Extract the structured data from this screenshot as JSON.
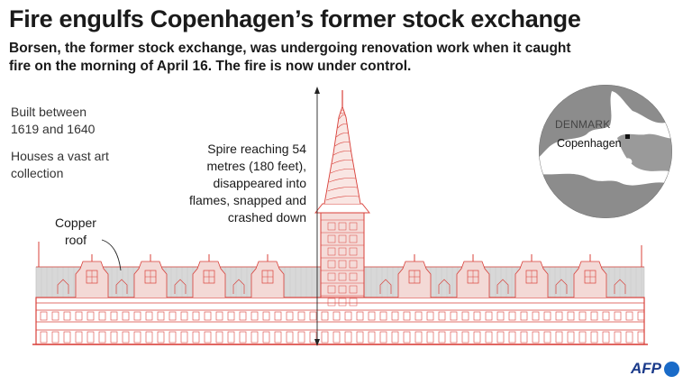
{
  "title": "Fire engulfs Copenhagen’s former stock exchange",
  "subtitle": "Borsen, the former stock exchange, was undergoing renovation work when it caught fire on the morning of April 16. The fire is now under control.",
  "facts": {
    "built": "Built between 1619 and 1640",
    "collection": "Houses a vast art collection"
  },
  "annotations": {
    "spire": "Spire reaching 54 metres (180 feet), disappeared into flames, snapped and crashed down",
    "roof": "Copper roof"
  },
  "map": {
    "country": "DENMARK",
    "city": "Copenhagen"
  },
  "credit": "AFP",
  "colors": {
    "building_line": "#d9403a",
    "roof_fill": "#d8d8d8",
    "map_land": "#ffffff",
    "map_water": "#8c8c8c"
  }
}
